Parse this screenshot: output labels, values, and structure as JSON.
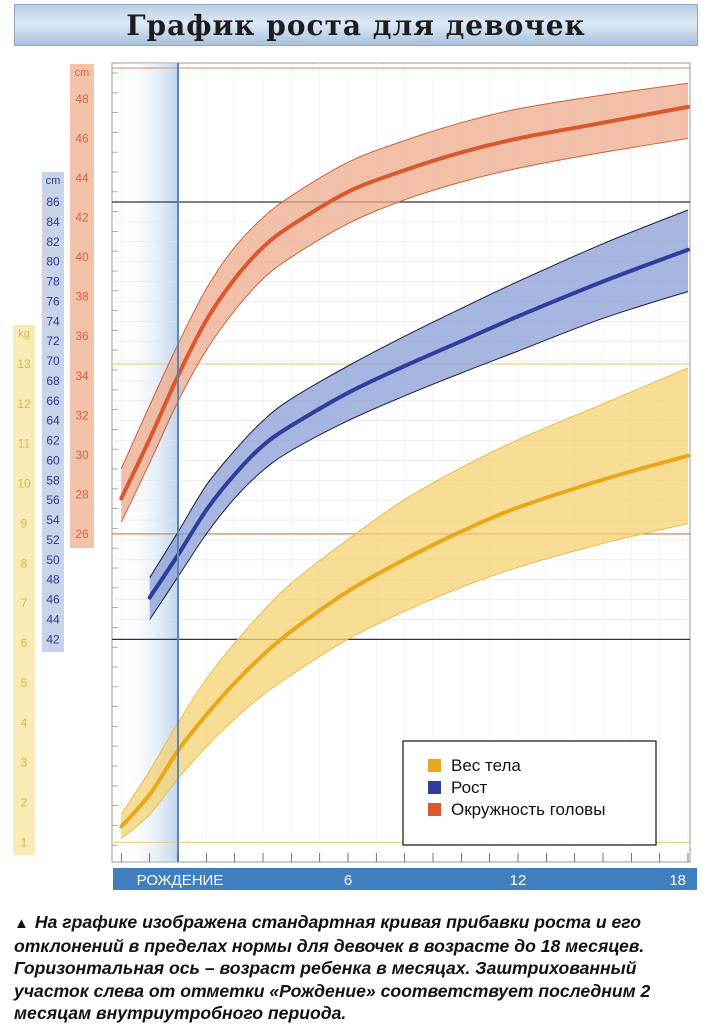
{
  "title": "График роста для девочек",
  "caption": "На графике изображена стандартная кривая прибавки роста и его отклонений в пределах нормы для девочек в возрасте до 18 месяцев. Горизонтальная ось – возраст ребенка в месяцах. Заштрихованный участок слева от отметки «Рождение» соответствует последним 2 месяцам внутриутробного периода.",
  "chart_data": {
    "type": "line",
    "title": "График роста для девочек",
    "x_axis": {
      "unit": "months",
      "range": [
        -2,
        18
      ],
      "ticks": [
        {
          "value": 0,
          "label": "РОЖДЕНИЕ"
        },
        {
          "value": 6,
          "label": "6"
        },
        {
          "value": 12,
          "label": "12"
        },
        {
          "value": 18,
          "label": "18"
        }
      ],
      "shaded_prenatal_range": [
        -2,
        0
      ]
    },
    "axes": {
      "head": {
        "unit_label": "cm",
        "range": [
          26,
          48
        ],
        "ticks": [
          "48",
          "46",
          "44",
          "42",
          "40",
          "38",
          "36",
          "34",
          "32",
          "30",
          "28",
          "26"
        ],
        "color": "#d4643c",
        "bg": "#f2c3a8"
      },
      "height": {
        "unit_label": "cm",
        "range": [
          42,
          86
        ],
        "ticks": [
          "86",
          "84",
          "82",
          "80",
          "78",
          "76",
          "74",
          "72",
          "70",
          "68",
          "66",
          "64",
          "62",
          "60",
          "58",
          "56",
          "54",
          "52",
          "50",
          "48",
          "46",
          "44",
          "42"
        ],
        "color": "#2b3a8f",
        "bg": "#c9d3ea"
      },
      "weight": {
        "unit_label": "kg",
        "range": [
          1,
          13
        ],
        "ticks": [
          "13",
          "12",
          "11",
          "10",
          "9",
          "8",
          "7",
          "6",
          "5",
          "4",
          "3",
          "2",
          "1"
        ],
        "color": "#d9b84a",
        "bg": "#f8ebb5"
      }
    },
    "legend": {
      "position": "bottom-right",
      "entries": [
        {
          "label": "Вес тела",
          "color": "#e8a81b"
        },
        {
          "label": "Рост",
          "color": "#2f3d9c"
        },
        {
          "label": "Окружность головы",
          "color": "#d9582d"
        }
      ]
    },
    "series": [
      {
        "name": "Окружность головы",
        "axis": "head",
        "color": "#d9582d",
        "band_color": "#eea98c",
        "x": [
          -2,
          -1,
          0,
          1,
          2,
          3,
          4,
          6,
          8,
          10,
          12,
          15,
          18
        ],
        "median": [
          27.8,
          30.8,
          34.0,
          36.8,
          38.9,
          40.5,
          41.6,
          43.3,
          44.4,
          45.3,
          46.0,
          46.8,
          47.6
        ],
        "lower": [
          26.6,
          29.6,
          32.7,
          35.3,
          37.3,
          38.9,
          40.0,
          41.7,
          42.9,
          43.8,
          44.5,
          45.3,
          46.0
        ],
        "upper": [
          29.3,
          32.5,
          35.6,
          38.4,
          40.5,
          42.0,
          43.1,
          44.8,
          45.9,
          46.8,
          47.5,
          48.2,
          48.8
        ]
      },
      {
        "name": "Рост",
        "axis": "height",
        "color": "#2f3d9c",
        "band_color": "#8a9ed6",
        "x": [
          -1,
          0,
          1,
          2,
          3,
          4,
          6,
          8,
          10,
          12,
          15,
          18
        ],
        "median": [
          46.2,
          50.5,
          55.0,
          58.6,
          61.5,
          63.5,
          66.8,
          69.5,
          72.0,
          74.5,
          78.0,
          81.2
        ],
        "lower": [
          44.0,
          48.3,
          52.6,
          56.2,
          59.0,
          61.0,
          64.0,
          66.5,
          68.8,
          71.0,
          74.3,
          77.0
        ],
        "upper": [
          48.2,
          52.8,
          57.5,
          61.0,
          64.0,
          66.2,
          69.5,
          72.5,
          75.3,
          78.0,
          81.8,
          85.2
        ]
      },
      {
        "name": "Вес тела",
        "axis": "weight",
        "color": "#e8a81b",
        "band_color": "#f6d271",
        "x": [
          -2,
          -1,
          0,
          1,
          2,
          3,
          4,
          6,
          8,
          10,
          12,
          15,
          18
        ],
        "median": [
          1.4,
          2.2,
          3.3,
          4.2,
          5.0,
          5.7,
          6.3,
          7.3,
          8.1,
          8.8,
          9.4,
          10.1,
          10.7
        ],
        "lower": [
          1.1,
          1.7,
          2.6,
          3.4,
          4.1,
          4.7,
          5.2,
          6.1,
          6.8,
          7.4,
          7.9,
          8.5,
          9.0
        ],
        "upper": [
          1.7,
          2.8,
          4.0,
          5.1,
          6.0,
          6.8,
          7.5,
          8.6,
          9.6,
          10.4,
          11.1,
          12.0,
          12.9
        ]
      }
    ]
  }
}
